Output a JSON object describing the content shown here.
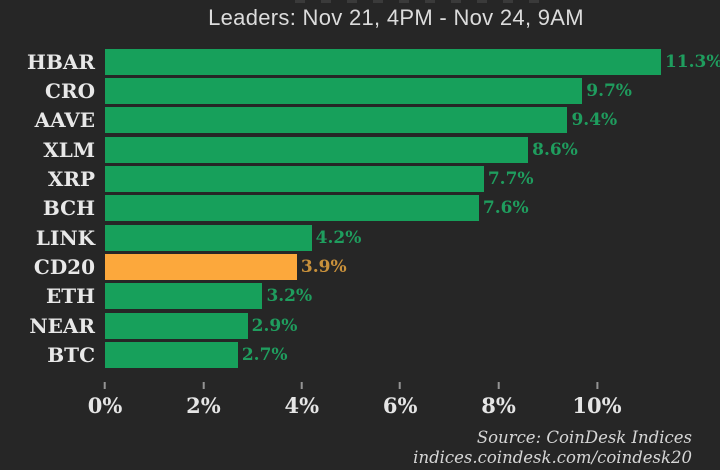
{
  "title": "Leaders: Nov 21, 4PM - Nov 24, 9AM",
  "source": {
    "line1": "Source: CoinDesk Indices",
    "line2": "indices.coindesk.com/coindesk20"
  },
  "chart_data": {
    "type": "bar",
    "orientation": "horizontal",
    "title": "Leaders: Nov 21, 4PM - Nov 24, 9AM",
    "categories": [
      "HBAR",
      "CRO",
      "AAVE",
      "XLM",
      "XRP",
      "BCH",
      "LINK",
      "CD20",
      "ETH",
      "NEAR",
      "BTC"
    ],
    "values": [
      11.3,
      9.7,
      9.4,
      8.6,
      7.7,
      7.6,
      4.2,
      3.9,
      3.2,
      2.9,
      2.7
    ],
    "value_labels": [
      "11.3%",
      "9.7%",
      "9.4%",
      "8.6%",
      "7.7%",
      "7.6%",
      "4.2%",
      "3.9%",
      "3.2%",
      "2.9%",
      "2.7%"
    ],
    "highlight_index": 7,
    "highlight_category": "CD20",
    "x_ticks": [
      "0%",
      "2%",
      "4%",
      "6%",
      "8%",
      "10%"
    ],
    "x_tick_values": [
      0,
      2,
      4,
      6,
      8,
      10
    ],
    "xlim": [
      0,
      12.5
    ],
    "grid": false,
    "legend": false,
    "colors": {
      "background": "#262626",
      "bar": "#17a05b",
      "highlight_bar": "#fca83c",
      "value_label": "#1f9d5e",
      "highlight_value_label": "#c9913b",
      "category_text": "#e8e8e8",
      "tick_text": "#e5e5e5",
      "title_text": "#dcdcdc"
    }
  }
}
